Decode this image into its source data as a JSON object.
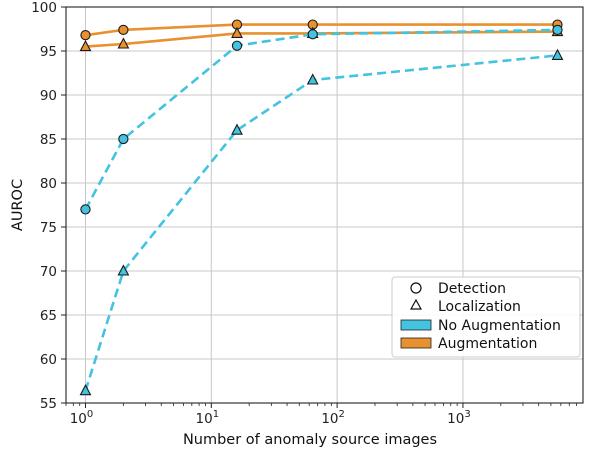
{
  "chart_data": {
    "type": "line",
    "title": "",
    "xlabel": "Number of anomaly source images",
    "ylabel": "AUROC",
    "xscale": "log",
    "xlim": [
      0.7,
      9000
    ],
    "ylim": [
      55,
      100
    ],
    "x_ticks": [
      1,
      10,
      100,
      1000
    ],
    "x_tick_labels": [
      {
        "base": "10",
        "exp": "0"
      },
      {
        "base": "10",
        "exp": "1"
      },
      {
        "base": "10",
        "exp": "2"
      },
      {
        "base": "10",
        "exp": "3"
      }
    ],
    "y_ticks": [
      55,
      60,
      65,
      70,
      75,
      80,
      85,
      90,
      95,
      100
    ],
    "grid": true,
    "legend_position": "lower-right",
    "colors": {
      "augmentation": "#e8912e",
      "no_augmentation": "#42c3e0",
      "marker_edge": "#1a1a1a",
      "grid": "#c8c8c8"
    },
    "x": [
      1,
      2,
      16,
      64,
      5640
    ],
    "series": [
      {
        "key": "aug_det",
        "method": "Augmentation",
        "metric": "Detection",
        "values": [
          96.8,
          97.4,
          98.0,
          98.0,
          98.0
        ]
      },
      {
        "key": "aug_loc",
        "method": "Augmentation",
        "metric": "Localization",
        "values": [
          95.5,
          95.8,
          97.0,
          97.0,
          97.2
        ]
      },
      {
        "key": "noaug_det",
        "method": "No Augmentation",
        "metric": "Detection",
        "values": [
          77.0,
          85.0,
          95.6,
          96.9,
          97.4
        ]
      },
      {
        "key": "noaug_loc",
        "method": "No Augmentation",
        "metric": "Localization",
        "values": [
          56.4,
          70.0,
          86.0,
          91.7,
          94.5
        ]
      }
    ],
    "legend": [
      {
        "label": "Detection",
        "kind": "marker-circle"
      },
      {
        "label": "Localization",
        "kind": "marker-triangle"
      },
      {
        "label": "No Augmentation",
        "kind": "patch-no-augmentation"
      },
      {
        "label": "Augmentation",
        "kind": "patch-augmentation"
      }
    ]
  }
}
